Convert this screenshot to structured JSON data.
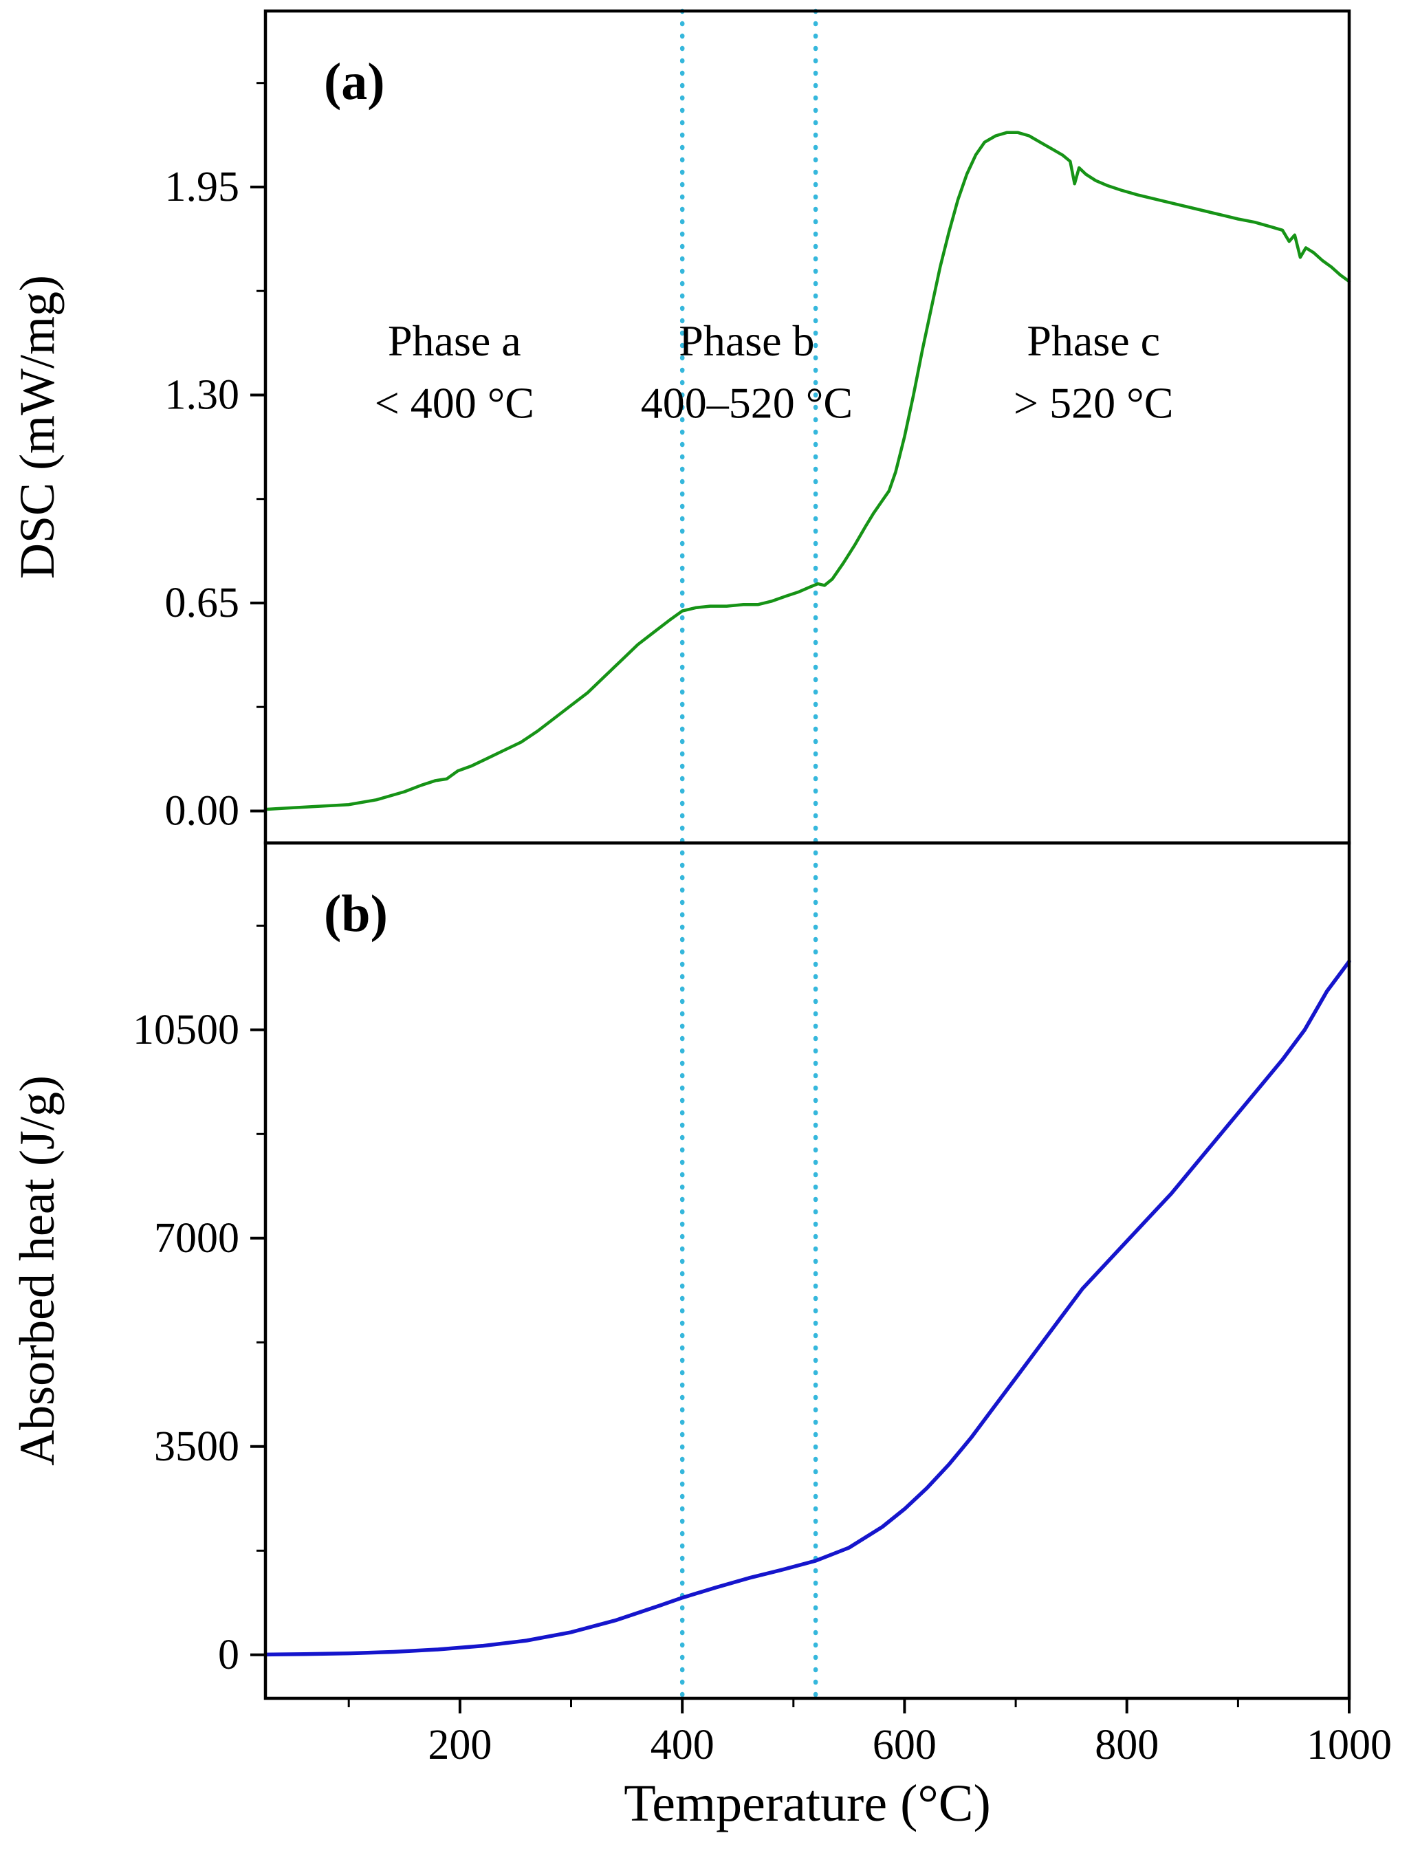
{
  "figure": {
    "panel_a_label": "(a)",
    "panel_b_label": "(b)"
  },
  "x_axis": {
    "label": "Temperature (°C)",
    "ticks": [
      200,
      400,
      600,
      800,
      1000
    ],
    "tick_labels": [
      "200",
      "400",
      "600",
      "800",
      "1000"
    ],
    "minor_ticks": [
      100,
      300,
      500,
      700,
      900
    ],
    "lim": [
      25,
      1000
    ]
  },
  "reference_lines": {
    "style": "dotted",
    "color": "#35b7dc",
    "values": [
      400,
      520
    ]
  },
  "chart_data": [
    {
      "type": "line",
      "panel": "a",
      "title": "",
      "xlabel": "Temperature (°C)",
      "ylabel": "DSC (mW/mg)",
      "yticks": [
        0.0,
        0.65,
        1.3,
        1.95
      ],
      "ytick_labels": [
        "0.00",
        "0.65",
        "1.30",
        "1.95"
      ],
      "yticks_minor": [
        0.325,
        0.975,
        1.625,
        2.275
      ],
      "ylim": [
        -0.1,
        2.5
      ],
      "grid": false,
      "legend": "none",
      "series": [
        {
          "name": "DSC",
          "color": "#169316",
          "width": 4.5,
          "x": [
            25,
            50,
            75,
            100,
            125,
            150,
            165,
            178,
            188,
            198,
            210,
            225,
            240,
            255,
            270,
            285,
            300,
            315,
            330,
            345,
            360,
            375,
            388,
            400,
            412,
            425,
            440,
            455,
            468,
            480,
            492,
            505,
            515,
            522,
            528,
            535,
            545,
            555,
            565,
            572,
            580,
            586,
            592,
            600,
            608,
            616,
            624,
            632,
            640,
            648,
            656,
            664,
            672,
            682,
            692,
            702,
            712,
            722,
            732,
            742,
            749,
            753,
            757,
            763,
            772,
            782,
            795,
            810,
            828,
            846,
            864,
            882,
            900,
            915,
            930,
            940,
            946,
            951,
            956,
            961,
            968,
            976,
            984,
            992,
            1000
          ],
          "y": [
            0.005,
            0.01,
            0.015,
            0.02,
            0.035,
            0.06,
            0.08,
            0.095,
            0.1,
            0.125,
            0.14,
            0.165,
            0.19,
            0.215,
            0.25,
            0.29,
            0.33,
            0.37,
            0.42,
            0.47,
            0.52,
            0.56,
            0.595,
            0.625,
            0.635,
            0.64,
            0.64,
            0.645,
            0.645,
            0.655,
            0.67,
            0.685,
            0.7,
            0.71,
            0.705,
            0.725,
            0.775,
            0.83,
            0.89,
            0.93,
            0.97,
            1.0,
            1.06,
            1.17,
            1.3,
            1.44,
            1.57,
            1.7,
            1.81,
            1.91,
            1.99,
            2.05,
            2.09,
            2.11,
            2.12,
            2.12,
            2.11,
            2.09,
            2.07,
            2.05,
            2.03,
            1.96,
            2.01,
            1.99,
            1.97,
            1.955,
            1.94,
            1.925,
            1.91,
            1.895,
            1.88,
            1.865,
            1.85,
            1.84,
            1.825,
            1.815,
            1.78,
            1.8,
            1.73,
            1.76,
            1.745,
            1.72,
            1.7,
            1.675,
            1.655
          ]
        }
      ],
      "annotations": [
        {
          "lines": [
            "Phase a",
            "< 400 °C"
          ],
          "x": 195,
          "y": [
            1.47,
            1.275
          ]
        },
        {
          "lines": [
            "Phase b",
            "400–520 °C"
          ],
          "x": 458,
          "y": [
            1.47,
            1.275
          ]
        },
        {
          "lines": [
            "Phase c",
            "> 520 °C"
          ],
          "x": 770,
          "y": [
            1.47,
            1.275
          ]
        }
      ]
    },
    {
      "type": "line",
      "panel": "b",
      "title": "",
      "xlabel": "Temperature (°C)",
      "ylabel": "Absorbed heat (J/g)",
      "yticks": [
        0,
        3500,
        7000,
        10500
      ],
      "ytick_labels": [
        "0",
        "3500",
        "7000",
        "10500"
      ],
      "yticks_minor": [
        1750,
        5250,
        8750,
        12250
      ],
      "ylim": [
        -730,
        13640
      ],
      "grid": false,
      "legend": "none",
      "series": [
        {
          "name": "Absorbed heat",
          "color": "#1515cc",
          "width": 5.5,
          "x": [
            25,
            60,
            100,
            140,
            180,
            220,
            260,
            300,
            340,
            380,
            400,
            430,
            460,
            490,
            520,
            550,
            580,
            600,
            620,
            640,
            660,
            680,
            700,
            720,
            740,
            760,
            780,
            800,
            820,
            840,
            860,
            880,
            900,
            920,
            940,
            960,
            980,
            1000
          ],
          "y": [
            5,
            12,
            25,
            50,
            90,
            150,
            240,
            380,
            580,
            830,
            960,
            1130,
            1290,
            1430,
            1580,
            1800,
            2150,
            2450,
            2800,
            3200,
            3650,
            4150,
            4650,
            5150,
            5650,
            6150,
            6550,
            6950,
            7350,
            7750,
            8200,
            8650,
            9100,
            9550,
            10000,
            10500,
            11150,
            11650
          ]
        }
      ],
      "annotations": []
    }
  ]
}
